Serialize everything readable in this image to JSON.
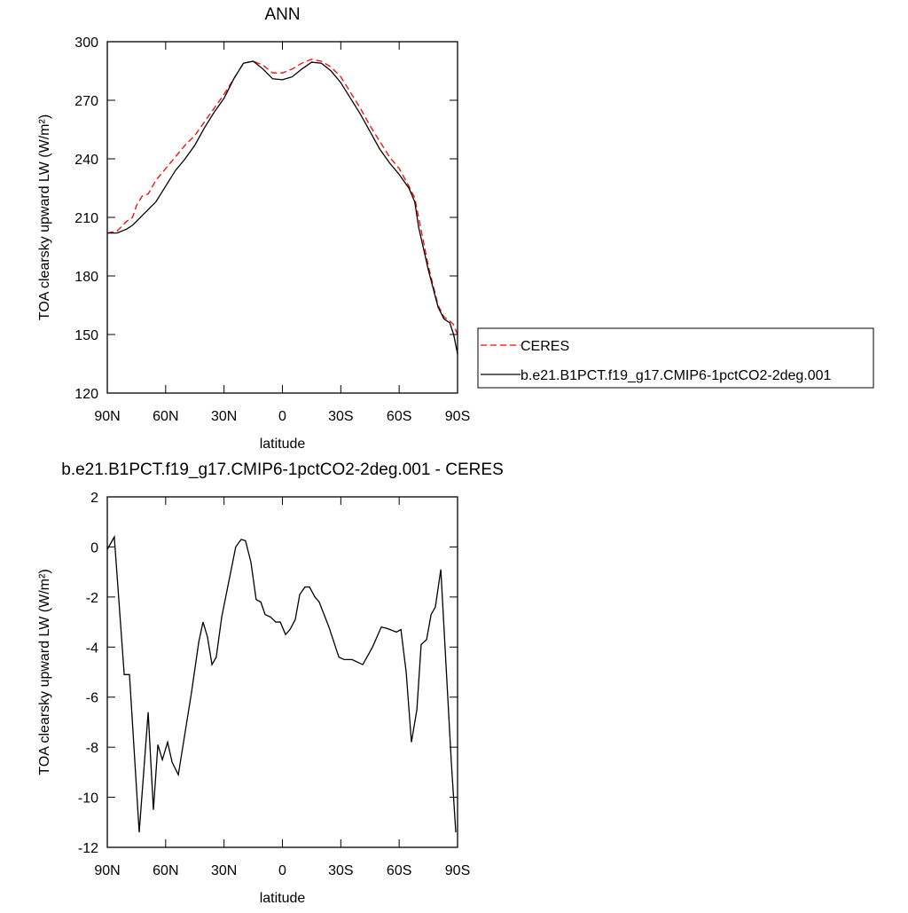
{
  "chart_data": [
    {
      "type": "line",
      "title": "ANN",
      "x_label": "latitude",
      "y_label": "TOA clearsky upward LW (W/m²)",
      "x": [
        90,
        85,
        80,
        77,
        75,
        72,
        69,
        65,
        60,
        55,
        50,
        45,
        40,
        35,
        30,
        25,
        20,
        15,
        10,
        5,
        0,
        -5,
        -10,
        -15,
        -20,
        -25,
        -30,
        -35,
        -40,
        -45,
        -50,
        -55,
        -60,
        -65,
        -68,
        -70,
        -75,
        -80,
        -83,
        -86,
        -88,
        -90
      ],
      "series": [
        {
          "name": "CERES",
          "color": "#ff0000",
          "dashed": true,
          "values": [
            202,
            203,
            208,
            210,
            216,
            221,
            222,
            229,
            235,
            241,
            247,
            252,
            259,
            266,
            273,
            281,
            289,
            290,
            288,
            284,
            284,
            286,
            289,
            291,
            290,
            287,
            282,
            274,
            266,
            257,
            249,
            241,
            235,
            226,
            220,
            210,
            185,
            165,
            159,
            157,
            155,
            150
          ]
        },
        {
          "name": "b.e21.B1PCT.f19_g17.CMIP6-1pctCO2-2deg.001",
          "color": "#000000",
          "dashed": false,
          "values": [
            202,
            202,
            204,
            206,
            208,
            211,
            214,
            218,
            226,
            234,
            240,
            247,
            256,
            264,
            271,
            281,
            289,
            290,
            286,
            281,
            280.5,
            282,
            286,
            289.5,
            289,
            285,
            279,
            271,
            263,
            254,
            245,
            238,
            232,
            225,
            218,
            205,
            183,
            164,
            158,
            156,
            150,
            140
          ]
        }
      ],
      "xlim": [
        90,
        -90
      ],
      "xticks": [
        {
          "value": 90,
          "label": "90N"
        },
        {
          "value": 60,
          "label": "60N"
        },
        {
          "value": 30,
          "label": "30N"
        },
        0,
        {
          "value": -30,
          "label": "30S"
        },
        {
          "value": -60,
          "label": "60S"
        },
        {
          "value": -90,
          "label": "90S"
        }
      ],
      "ylim": [
        120,
        300
      ],
      "yticks": [
        120,
        150,
        180,
        210,
        240,
        270,
        300
      ],
      "legend": "right"
    },
    {
      "type": "line",
      "title": "b.e21.B1PCT.f19_g17.CMIP6-1pctCO2-2deg.001 - CERES",
      "x_label": "latitude",
      "y_label": "TOA clearsky upward LW (W/m²)",
      "x": [
        90,
        86.4,
        81.3,
        78.6,
        73.6,
        69,
        66.3,
        64,
        61.7,
        59,
        56.7,
        53.5,
        46.7,
        43,
        40.8,
        38.5,
        36.2,
        34,
        31.2,
        24,
        21.2,
        19,
        16.2,
        13.5,
        11.1,
        8.9,
        6.1,
        3.4,
        1.1,
        -1.6,
        -3.9,
        -6.6,
        -8.9,
        -11.6,
        -13.9,
        -16.7,
        -18.9,
        -23.9,
        -29,
        -31.7,
        -35.8,
        -41.3,
        -46.3,
        -50.8,
        -53.6,
        -58.6,
        -60.9,
        -63.6,
        -66.3,
        -69.1,
        -71.3,
        -74.1,
        -76.4,
        -78.6,
        -81.4,
        -86.8,
        -89.1
      ],
      "series": [
        {
          "color": "#000000",
          "dashed": false,
          "values": [
            -0.1,
            0.4,
            -5.1,
            -5.1,
            -11.4,
            -6.6,
            -10.5,
            -7.9,
            -8.5,
            -7.8,
            -8.6,
            -9.1,
            -5.8,
            -3.8,
            -3.0,
            -3.6,
            -4.7,
            -4.4,
            -2.8,
            0,
            0.3,
            0.25,
            -0.6,
            -2.1,
            -2.2,
            -2.7,
            -2.8,
            -3.0,
            -3.0,
            -3.5,
            -3.3,
            -2.9,
            -1.9,
            -1.6,
            -1.6,
            -2.0,
            -2.2,
            -3.2,
            -4.4,
            -4.5,
            -4.5,
            -4.7,
            -4.0,
            -3.2,
            -3.25,
            -3.4,
            -3.3,
            -5.0,
            -7.8,
            -6.5,
            -3.9,
            -3.7,
            -2.7,
            -2.4,
            -0.9,
            -8.6,
            -11.4
          ]
        }
      ],
      "xlim": [
        90,
        -90
      ],
      "xticks": [
        {
          "value": 90,
          "label": "90N"
        },
        {
          "value": 60,
          "label": "60N"
        },
        {
          "value": 30,
          "label": "30N"
        },
        0,
        {
          "value": -30,
          "label": "30S"
        },
        {
          "value": -60,
          "label": "60S"
        },
        {
          "value": -90,
          "label": "90S"
        }
      ],
      "ylim": [
        -12,
        2
      ],
      "yticks": [
        -12,
        -10,
        -8,
        -6,
        -4,
        -2,
        0,
        2
      ]
    }
  ]
}
